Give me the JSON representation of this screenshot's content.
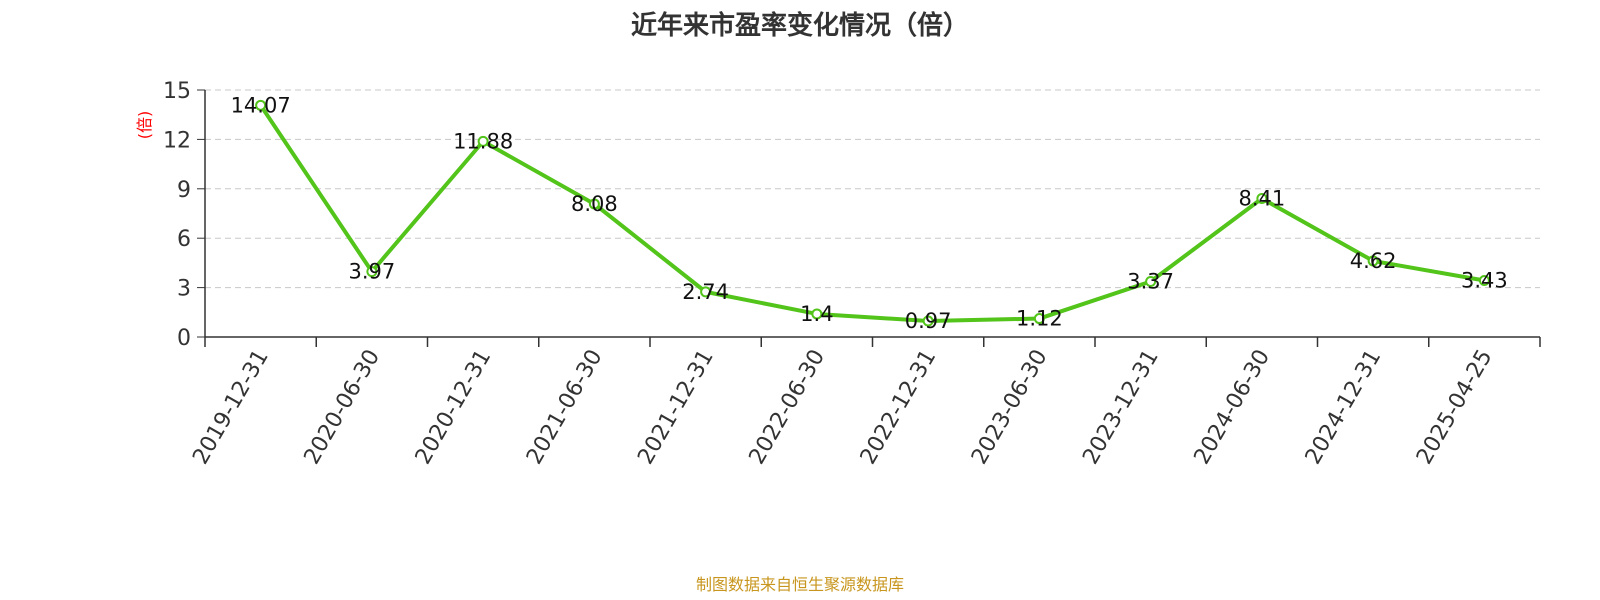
{
  "chart_data": {
    "type": "line",
    "title": "近年来市盈率变化情况（倍）",
    "ylabel": "(倍)",
    "xlabel": "",
    "categories": [
      "2019-12-31",
      "2020-06-30",
      "2020-12-31",
      "2021-06-30",
      "2021-12-31",
      "2022-06-30",
      "2022-12-31",
      "2023-06-30",
      "2023-12-31",
      "2024-06-30",
      "2024-12-31",
      "2025-04-25"
    ],
    "series": [
      {
        "values": [
          14.07,
          3.97,
          11.88,
          8.08,
          2.74,
          1.4,
          0.97,
          1.12,
          3.37,
          8.41,
          4.62,
          3.43
        ],
        "labels": [
          "14.07",
          "3.97",
          "11.88",
          "8.08",
          "2.74",
          "1.4",
          "0.97",
          "1.12",
          "3.37",
          "8.41",
          "4.62",
          "3.43"
        ]
      }
    ],
    "ylim": [
      0,
      15
    ],
    "yticks": [
      0,
      3,
      6,
      9,
      12,
      15
    ],
    "grid": true,
    "line_color": "#52c41a",
    "ylabel_color": "#ff0000"
  },
  "footer": {
    "source": "制图数据来自恒生聚源数据库",
    "color": "#c8961e"
  }
}
